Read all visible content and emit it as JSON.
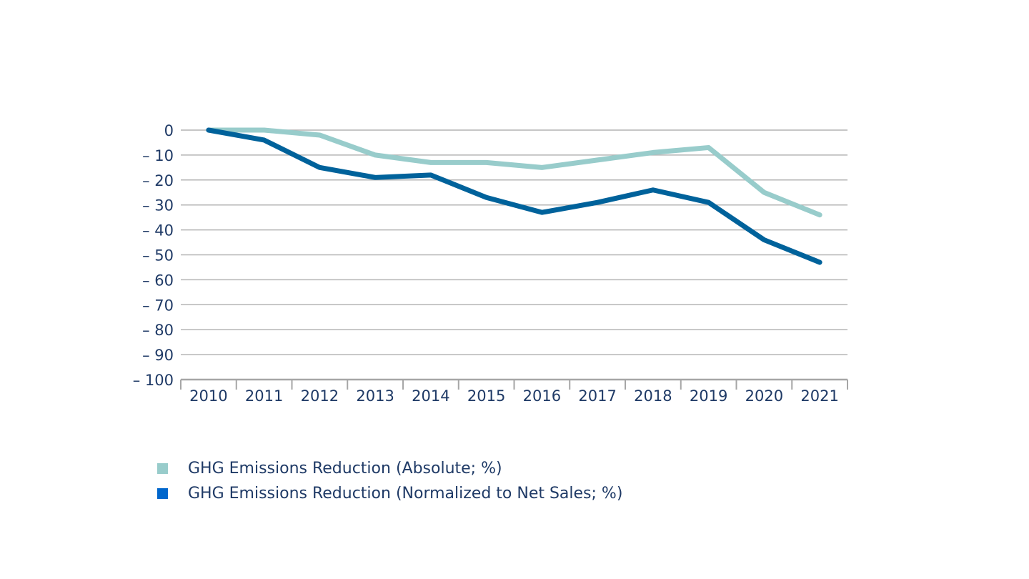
{
  "chart_data": {
    "type": "line",
    "title": "",
    "xlabel": "",
    "ylabel": "",
    "categories": [
      "2010",
      "2011",
      "2012",
      "2013",
      "2014",
      "2015",
      "2016",
      "2017",
      "2018",
      "2019",
      "2020",
      "2021"
    ],
    "ylim": [
      -100,
      0
    ],
    "yticks": [
      0,
      -10,
      -20,
      -30,
      -40,
      -50,
      -60,
      -70,
      -80,
      -90,
      -100
    ],
    "ytick_labels": [
      "0",
      "– 10",
      "– 20",
      "– 30",
      "– 40",
      "– 50",
      "– 60",
      "– 70",
      "– 80",
      "– 90",
      "– 100"
    ],
    "grid": "horizontal",
    "legend_position": "bottom-left",
    "series": [
      {
        "name": "GHG Emissions Reduction (Absolute; %)",
        "color": "#98cccb",
        "legend_color": "#98cccb",
        "values": [
          0,
          0,
          -2,
          -10,
          -13,
          -13,
          -15,
          -12,
          -9,
          -7,
          -25,
          -34
        ]
      },
      {
        "name": "GHG Emissions Reduction (Normalized to Net Sales; %)",
        "color": "#00629b",
        "legend_color": "#0066cc",
        "values": [
          0,
          -4,
          -15,
          -19,
          -18,
          -27,
          -33,
          -29,
          -24,
          -29,
          -44,
          -53
        ]
      }
    ]
  }
}
